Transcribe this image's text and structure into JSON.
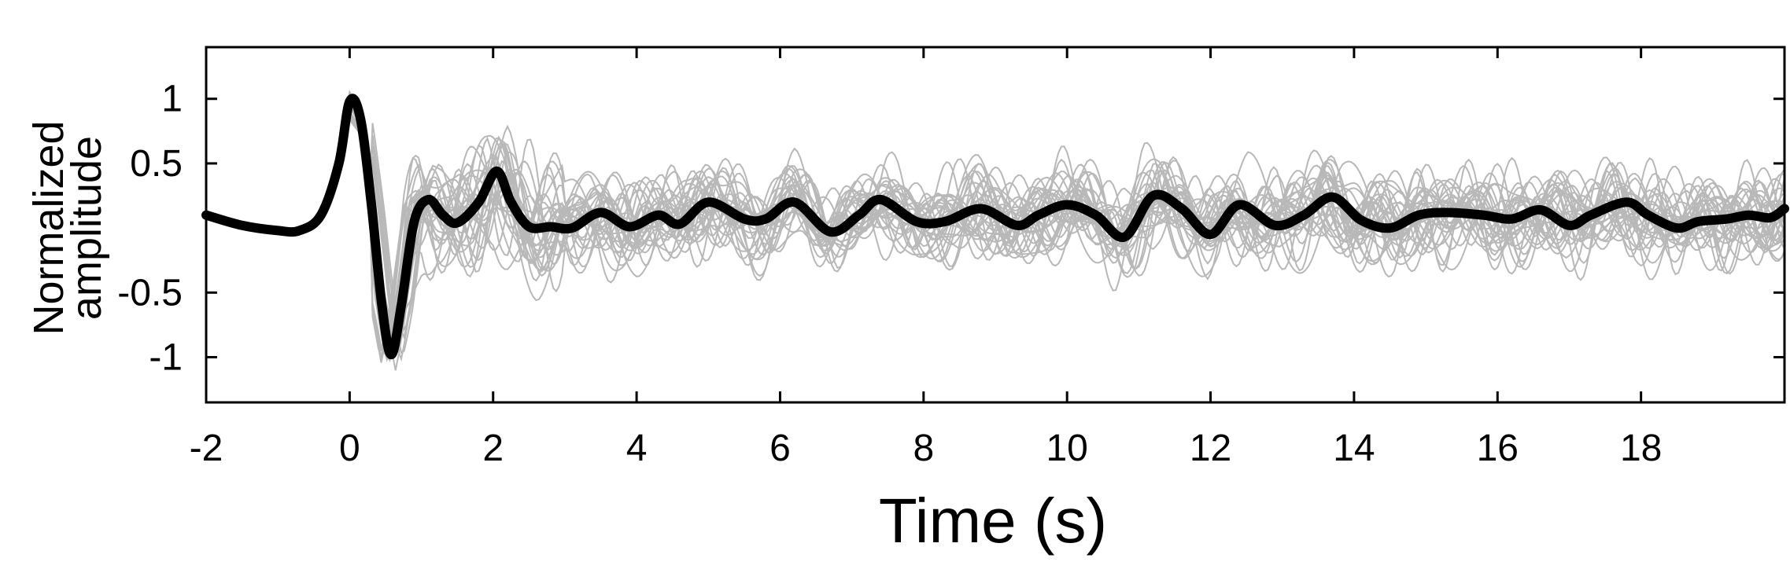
{
  "chart_data": {
    "type": "line",
    "title": "",
    "xlabel": "Time (s)",
    "ylabel": [
      "Normalized",
      "amplitude"
    ],
    "xlim": [
      -2,
      20
    ],
    "ylim": [
      -1.35,
      1.4
    ],
    "x_ticks": [
      -2,
      0,
      2,
      4,
      6,
      8,
      10,
      12,
      14,
      16,
      18
    ],
    "x_tick_labels": [
      "-2",
      "0",
      "2",
      "4",
      "6",
      "8",
      "10",
      "12",
      "14",
      "16",
      "18"
    ],
    "y_ticks": [
      1,
      0.5,
      -0.5,
      -1
    ],
    "y_tick_labels": [
      "1",
      "0.5",
      "-0.5",
      "-1"
    ],
    "grid": false,
    "legend": "none",
    "colors": {
      "mean": "#000000",
      "individual": "#b8b8b8"
    },
    "series": [
      {
        "style": "thick-black",
        "x": [
          -2,
          -1.5,
          -1,
          -0.7,
          -0.4,
          -0.15,
          0,
          0.15,
          0.3,
          0.45,
          0.58,
          0.72,
          0.9,
          1.1,
          1.3,
          1.5,
          1.8,
          2.05,
          2.25,
          2.5,
          2.8,
          3.1,
          3.5,
          3.9,
          4.3,
          4.6,
          5.0,
          5.5,
          5.8,
          6.2,
          6.7,
          7.1,
          7.4,
          7.9,
          8.3,
          8.8,
          9.3,
          9.6,
          10.0,
          10.4,
          10.8,
          11.2,
          11.6,
          12.0,
          12.4,
          12.9,
          13.3,
          13.7,
          14.1,
          14.5,
          14.9,
          15.3,
          15.8,
          16.2,
          16.6,
          17.0,
          17.3,
          17.8,
          18.1,
          18.5,
          18.8,
          19.2,
          19.5,
          19.8,
          20
        ],
        "y": [
          0.1,
          0.02,
          -0.02,
          -0.02,
          0.1,
          0.5,
          0.98,
          0.85,
          0.2,
          -0.6,
          -0.98,
          -0.6,
          0.05,
          0.22,
          0.1,
          0.04,
          0.2,
          0.44,
          0.2,
          0.01,
          0.01,
          0.0,
          0.12,
          0.01,
          0.1,
          0.03,
          0.2,
          0.07,
          0.07,
          0.2,
          -0.03,
          0.1,
          0.22,
          0.05,
          0.05,
          0.15,
          0.02,
          0.1,
          0.18,
          0.1,
          -0.07,
          0.25,
          0.15,
          -0.05,
          0.18,
          0.02,
          0.1,
          0.24,
          0.06,
          0.0,
          0.1,
          0.12,
          0.1,
          0.07,
          0.14,
          0.02,
          0.1,
          0.2,
          0.1,
          0.0,
          0.05,
          0.07,
          0.1,
          0.08,
          0.15
        ]
      }
    ]
  },
  "individual_traces_count": 30
}
